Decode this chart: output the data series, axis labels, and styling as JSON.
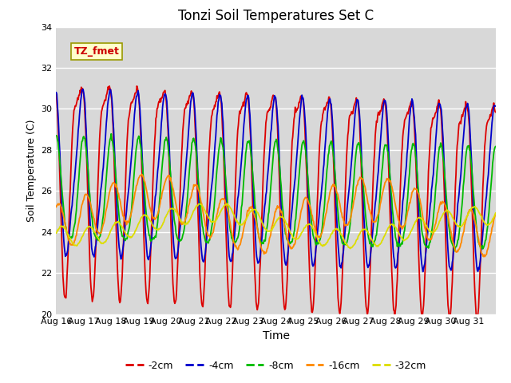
{
  "title": "Tonzi Soil Temperatures Set C",
  "xlabel": "Time",
  "ylabel": "Soil Temperature (C)",
  "ylim": [
    20,
    34
  ],
  "yticks": [
    20,
    22,
    24,
    26,
    28,
    30,
    32,
    34
  ],
  "x_labels": [
    "Aug 16",
    "Aug 17",
    "Aug 18",
    "Aug 19",
    "Aug 20",
    "Aug 21",
    "Aug 22",
    "Aug 23",
    "Aug 24",
    "Aug 25",
    "Aug 26",
    "Aug 27",
    "Aug 28",
    "Aug 29",
    "Aug 30",
    "Aug 31"
  ],
  "series_order": [
    "-2cm",
    "-4cm",
    "-8cm",
    "-16cm",
    "-32cm"
  ],
  "colors": {
    "-2cm": "#dd0000",
    "-4cm": "#0000cc",
    "-8cm": "#00bb00",
    "-16cm": "#ff8800",
    "-32cm": "#dddd00"
  },
  "lw": 1.3,
  "annotation_text": "TZ_fmet",
  "fig_bg": "#ffffff",
  "plot_bg": "#d8d8d8",
  "grid_color": "#ffffff",
  "n_points": 720,
  "annotation_facecolor": "#ffffcc",
  "annotation_edgecolor": "#999900"
}
